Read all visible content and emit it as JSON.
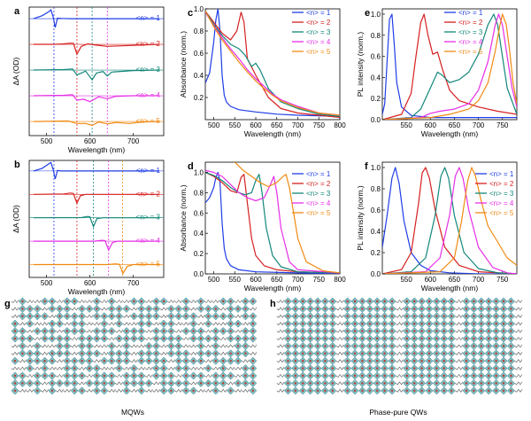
{
  "legend_label": "<n> = ",
  "colors": {
    "n1": "#1f3de6",
    "n2": "#d62020",
    "n3": "#12877a",
    "n4": "#e62ee6",
    "n5": "#f08a12"
  },
  "chart_data": [
    {
      "panel": "a",
      "type": "line",
      "xlabel": "Wavelength (nm)",
      "ylabel": "ΔA (OD)",
      "xlim": [
        460,
        770
      ],
      "xticks": [
        500,
        600,
        700
      ],
      "stacked": true,
      "legend": [
        "<n> = 1",
        "<n> = 2",
        "<n> = 3",
        "<n> = 4",
        "<n> = 5"
      ],
      "dashed_markers_nm": [
        517,
        570,
        605,
        640
      ],
      "series": [
        {
          "name": "<n> = 1",
          "x": [
            470,
            490,
            505,
            510,
            515,
            520,
            525,
            535,
            560,
            600,
            700,
            760
          ],
          "y": [
            0,
            0.3,
            0.7,
            0.9,
            0.2,
            -0.9,
            0.05,
            0.02,
            0,
            0,
            0,
            0
          ]
        },
        {
          "name": "<n> = 2",
          "x": [
            470,
            520,
            540,
            555,
            562,
            570,
            580,
            595,
            610,
            640,
            700,
            760
          ],
          "y": [
            0,
            0,
            0.05,
            0.12,
            0.1,
            -1.0,
            -0.2,
            0.05,
            -0.05,
            -0.2,
            -0.1,
            0
          ]
        },
        {
          "name": "<n> = 3",
          "x": [
            470,
            540,
            560,
            570,
            580,
            590,
            605,
            615,
            630,
            640,
            650,
            700,
            760
          ],
          "y": [
            0,
            0.05,
            0.1,
            -0.5,
            -0.3,
            -0.1,
            -1.0,
            -0.3,
            -0.15,
            -0.6,
            -0.2,
            -0.05,
            0
          ]
        },
        {
          "name": "<n> = 4",
          "x": [
            470,
            540,
            560,
            570,
            585,
            600,
            620,
            640,
            660,
            700,
            760
          ],
          "y": [
            0,
            0.05,
            0.1,
            -0.45,
            -0.35,
            -0.6,
            -0.1,
            -0.3,
            -0.05,
            0,
            0
          ]
        },
        {
          "name": "<n> = 5",
          "x": [
            470,
            550,
            570,
            590,
            605,
            620,
            640,
            660,
            690,
            720,
            760
          ],
          "y": [
            0,
            0.05,
            -0.2,
            -0.2,
            -0.4,
            -0.05,
            -0.25,
            -0.1,
            -0.2,
            -0.05,
            0
          ]
        }
      ]
    },
    {
      "panel": "b",
      "type": "line",
      "xlabel": "Wavelength (nm)",
      "ylabel": "ΔA (OD)",
      "xlim": [
        460,
        770
      ],
      "xticks": [
        500,
        600,
        700
      ],
      "stacked": true,
      "legend": [
        "<n> = 1",
        "<n> = 2",
        "<n> = 3",
        "<n> = 4",
        "<n> = 5"
      ],
      "dashed_markers_nm": [
        517,
        570,
        608,
        643,
        675
      ],
      "series": [
        {
          "name": "<n> = 1",
          "x": [
            470,
            490,
            505,
            510,
            515,
            520,
            525,
            535,
            560,
            760
          ],
          "y": [
            0,
            0.3,
            0.8,
            0.95,
            0.2,
            -0.9,
            0.05,
            0,
            0,
            0
          ]
        },
        {
          "name": "<n> = 2",
          "x": [
            470,
            540,
            555,
            562,
            570,
            578,
            590,
            760
          ],
          "y": [
            0,
            0.05,
            0.15,
            0.1,
            -1.0,
            -0.15,
            0,
            0
          ]
        },
        {
          "name": "<n> = 3",
          "x": [
            470,
            580,
            595,
            600,
            608,
            616,
            630,
            760
          ],
          "y": [
            0,
            0.02,
            0.15,
            0.1,
            -1.0,
            -0.1,
            0,
            0
          ]
        },
        {
          "name": "<n> = 4",
          "x": [
            470,
            610,
            628,
            635,
            643,
            652,
            665,
            760
          ],
          "y": [
            0,
            0,
            0.1,
            0.05,
            -1.0,
            -0.15,
            0,
            0
          ]
        },
        {
          "name": "<n> = 5",
          "x": [
            470,
            640,
            660,
            668,
            676,
            686,
            700,
            760
          ],
          "y": [
            0,
            0,
            0.08,
            0.02,
            -1.0,
            -0.2,
            0,
            0
          ]
        }
      ]
    },
    {
      "panel": "c",
      "type": "line",
      "xlabel": "Wavelength (nm)",
      "ylabel": "Absorbance (norm.)",
      "xlim": [
        480,
        800
      ],
      "ylim": [
        0,
        1.0
      ],
      "xticks": [
        500,
        550,
        600,
        650,
        700,
        750,
        800
      ],
      "yticks": [
        0.2,
        0.4,
        0.6,
        0.8,
        1.0
      ],
      "legend": [
        "<n> = 1",
        "<n> = 2",
        "<n> = 3",
        "<n> = 4",
        "<n> = 5"
      ],
      "series": [
        {
          "name": "<n> = 1",
          "x": [
            480,
            490,
            500,
            505,
            510,
            515,
            520,
            525,
            530,
            540,
            560,
            600,
            650,
            700,
            800
          ],
          "y": [
            0.33,
            0.42,
            0.7,
            0.9,
            1.0,
            0.8,
            0.4,
            0.22,
            0.16,
            0.12,
            0.09,
            0.07,
            0.05,
            0.04,
            0.03
          ]
        },
        {
          "name": "<n> = 2",
          "x": [
            480,
            500,
            520,
            540,
            555,
            565,
            572,
            580,
            600,
            630,
            660,
            700,
            750,
            800
          ],
          "y": [
            0.98,
            0.88,
            0.78,
            0.72,
            0.8,
            0.97,
            0.88,
            0.55,
            0.4,
            0.2,
            0.1,
            0.06,
            0.04,
            0.02
          ]
        },
        {
          "name": "<n> = 3",
          "x": [
            480,
            500,
            520,
            540,
            560,
            575,
            590,
            600,
            610,
            630,
            660,
            700,
            750,
            800
          ],
          "y": [
            0.98,
            0.86,
            0.76,
            0.68,
            0.64,
            0.58,
            0.48,
            0.51,
            0.45,
            0.28,
            0.16,
            0.1,
            0.05,
            0.03
          ]
        },
        {
          "name": "<n> = 4",
          "x": [
            480,
            500,
            520,
            540,
            560,
            580,
            600,
            620,
            640,
            660,
            700,
            750,
            800
          ],
          "y": [
            0.97,
            0.85,
            0.74,
            0.64,
            0.55,
            0.45,
            0.37,
            0.3,
            0.23,
            0.18,
            0.12,
            0.06,
            0.04
          ]
        },
        {
          "name": "<n> = 5",
          "x": [
            480,
            500,
            520,
            540,
            560,
            580,
            600,
            620,
            640,
            660,
            700,
            750,
            800
          ],
          "y": [
            0.98,
            0.84,
            0.72,
            0.62,
            0.52,
            0.43,
            0.35,
            0.28,
            0.22,
            0.17,
            0.11,
            0.06,
            0.04
          ]
        }
      ]
    },
    {
      "panel": "d",
      "type": "line",
      "xlabel": "Wavelength (nm)",
      "ylabel": "Absorbance (norm.)",
      "xlim": [
        480,
        800
      ],
      "ylim": [
        0,
        1.1
      ],
      "xticks": [
        500,
        550,
        600,
        650,
        700,
        750,
        800
      ],
      "yticks": [
        0.0,
        0.2,
        0.4,
        0.6,
        0.8,
        1.0
      ],
      "legend": [
        "<n> = 1",
        "<n> = 2",
        "<n> = 3",
        "<n> = 4",
        "<n> = 5"
      ],
      "series": [
        {
          "name": "<n> = 1",
          "x": [
            480,
            490,
            500,
            505,
            510,
            515,
            520,
            525,
            530,
            540,
            560,
            600,
            700,
            800
          ],
          "y": [
            0.7,
            0.75,
            0.85,
            0.95,
            1.0,
            0.9,
            0.5,
            0.25,
            0.15,
            0.08,
            0.04,
            0.02,
            0.01,
            0.0
          ]
        },
        {
          "name": "<n> = 2",
          "x": [
            480,
            500,
            520,
            540,
            555,
            565,
            572,
            580,
            590,
            600,
            620,
            650,
            700,
            800
          ],
          "y": [
            1.0,
            0.96,
            0.9,
            0.82,
            0.8,
            0.95,
            0.98,
            0.7,
            0.35,
            0.18,
            0.08,
            0.04,
            0.02,
            0.01
          ]
        },
        {
          "name": "<n> = 3",
          "x": [
            480,
            500,
            520,
            540,
            560,
            575,
            590,
            600,
            608,
            615,
            625,
            640,
            660,
            700,
            800
          ],
          "y": [
            1.0,
            0.97,
            0.92,
            0.85,
            0.8,
            0.78,
            0.8,
            0.92,
            0.98,
            0.8,
            0.45,
            0.18,
            0.07,
            0.02,
            0.01
          ]
        },
        {
          "name": "<n> = 4",
          "x": [
            480,
            500,
            520,
            540,
            560,
            580,
            600,
            620,
            635,
            643,
            650,
            660,
            680,
            700,
            800
          ],
          "y": [
            1.02,
            1.0,
            0.96,
            0.88,
            0.8,
            0.75,
            0.72,
            0.75,
            0.88,
            0.96,
            0.8,
            0.45,
            0.12,
            0.04,
            0.01
          ]
        },
        {
          "name": "<n> = 5",
          "x": [
            550,
            570,
            590,
            610,
            630,
            650,
            665,
            672,
            680,
            690,
            700,
            720,
            760,
            800
          ],
          "y": [
            1.1,
            1.02,
            0.96,
            0.9,
            0.86,
            0.9,
            0.96,
            0.98,
            0.85,
            0.6,
            0.35,
            0.12,
            0.03,
            0.01
          ]
        }
      ]
    },
    {
      "panel": "e",
      "type": "line",
      "xlabel": "Wavelength (nm)",
      "ylabel": "PL intensity (norm.)",
      "xlim": [
        500,
        780
      ],
      "ylim": [
        0,
        1.05
      ],
      "xticks": [
        550,
        600,
        650,
        700,
        750
      ],
      "yticks": [
        0.0,
        0.2,
        0.4,
        0.6,
        0.8,
        1.0
      ],
      "legend": [
        "<n> = 1",
        "<n> = 2",
        "<n> = 3",
        "<n> = 4",
        "<n> = 5"
      ],
      "series": [
        {
          "name": "<n> = 1",
          "x": [
            500,
            505,
            510,
            515,
            520,
            525,
            530,
            540,
            560,
            600,
            650,
            700,
            750,
            780
          ],
          "y": [
            0.05,
            0.15,
            0.55,
            0.95,
            1.0,
            0.7,
            0.35,
            0.12,
            0.04,
            0.02,
            0.02,
            0.02,
            0.02,
            0.02
          ]
        },
        {
          "name": "<n> = 2",
          "x": [
            500,
            540,
            560,
            570,
            580,
            587,
            595,
            605,
            615,
            625,
            640,
            660,
            700,
            740,
            780
          ],
          "y": [
            0.0,
            0.05,
            0.25,
            0.6,
            0.92,
            1.0,
            0.8,
            0.62,
            0.64,
            0.48,
            0.28,
            0.18,
            0.12,
            0.08,
            0.05
          ]
        },
        {
          "name": "<n> = 3",
          "x": [
            500,
            560,
            580,
            600,
            615,
            625,
            640,
            660,
            680,
            700,
            720,
            732,
            740,
            750,
            760,
            780
          ],
          "y": [
            0.0,
            0.02,
            0.1,
            0.3,
            0.45,
            0.42,
            0.35,
            0.38,
            0.45,
            0.62,
            0.9,
            1.0,
            0.9,
            0.6,
            0.3,
            0.05
          ]
        },
        {
          "name": "<n> = 4",
          "x": [
            500,
            580,
            600,
            620,
            650,
            680,
            700,
            720,
            735,
            742,
            750,
            760,
            770,
            780
          ],
          "y": [
            0.0,
            0.02,
            0.06,
            0.08,
            0.1,
            0.15,
            0.28,
            0.55,
            0.9,
            1.0,
            0.9,
            0.6,
            0.3,
            0.12
          ]
        },
        {
          "name": "<n> = 5",
          "x": [
            500,
            600,
            640,
            680,
            700,
            720,
            735,
            745,
            750,
            758,
            765,
            772,
            780
          ],
          "y": [
            0.0,
            0.02,
            0.05,
            0.1,
            0.18,
            0.35,
            0.65,
            0.9,
            1.0,
            0.9,
            0.65,
            0.35,
            0.15
          ]
        }
      ]
    },
    {
      "panel": "f",
      "type": "line",
      "xlabel": "Wavelength (nm)",
      "ylabel": "PL intensity (norm.)",
      "xlim": [
        500,
        780
      ],
      "ylim": [
        0,
        1.05
      ],
      "xticks": [
        550,
        600,
        650,
        700,
        750
      ],
      "yticks": [
        0.0,
        0.2,
        0.4,
        0.6,
        0.8,
        1.0
      ],
      "legend": [
        "<n> = 1",
        "<n> = 2",
        "<n> = 3",
        "<n> = 4",
        "<n> = 5"
      ],
      "series": [
        {
          "name": "<n> = 1",
          "x": [
            500,
            510,
            520,
            527,
            535,
            545,
            560,
            580,
            600,
            640,
            700,
            780
          ],
          "y": [
            0.25,
            0.55,
            0.9,
            1.0,
            0.85,
            0.5,
            0.2,
            0.08,
            0.03,
            0.01,
            0.0,
            0.0
          ]
        },
        {
          "name": "<n> = 2",
          "x": [
            500,
            540,
            560,
            575,
            583,
            590,
            598,
            610,
            630,
            660,
            700,
            780
          ],
          "y": [
            0.0,
            0.04,
            0.2,
            0.65,
            0.95,
            1.0,
            0.9,
            0.6,
            0.25,
            0.08,
            0.02,
            0.0
          ]
        },
        {
          "name": "<n> = 3",
          "x": [
            500,
            560,
            590,
            610,
            622,
            630,
            638,
            650,
            670,
            700,
            740,
            780
          ],
          "y": [
            0.0,
            0.02,
            0.15,
            0.55,
            0.92,
            1.0,
            0.9,
            0.55,
            0.2,
            0.05,
            0.01,
            0.0
          ]
        },
        {
          "name": "<n> = 4",
          "x": [
            500,
            590,
            620,
            640,
            652,
            660,
            668,
            680,
            700,
            730,
            760,
            780
          ],
          "y": [
            0.0,
            0.02,
            0.15,
            0.55,
            0.92,
            1.0,
            0.9,
            0.6,
            0.25,
            0.06,
            0.01,
            0.0
          ]
        },
        {
          "name": "<n> = 5",
          "x": [
            500,
            620,
            650,
            665,
            678,
            686,
            694,
            705,
            720,
            740,
            760,
            780
          ],
          "y": [
            0.0,
            0.02,
            0.15,
            0.5,
            0.88,
            1.0,
            0.92,
            0.7,
            0.45,
            0.3,
            0.15,
            0.08
          ]
        }
      ]
    }
  ],
  "diagrams": [
    {
      "panel": "g",
      "caption": "MQWs"
    },
    {
      "panel": "h",
      "caption": "Phase-pure QWs"
    }
  ]
}
